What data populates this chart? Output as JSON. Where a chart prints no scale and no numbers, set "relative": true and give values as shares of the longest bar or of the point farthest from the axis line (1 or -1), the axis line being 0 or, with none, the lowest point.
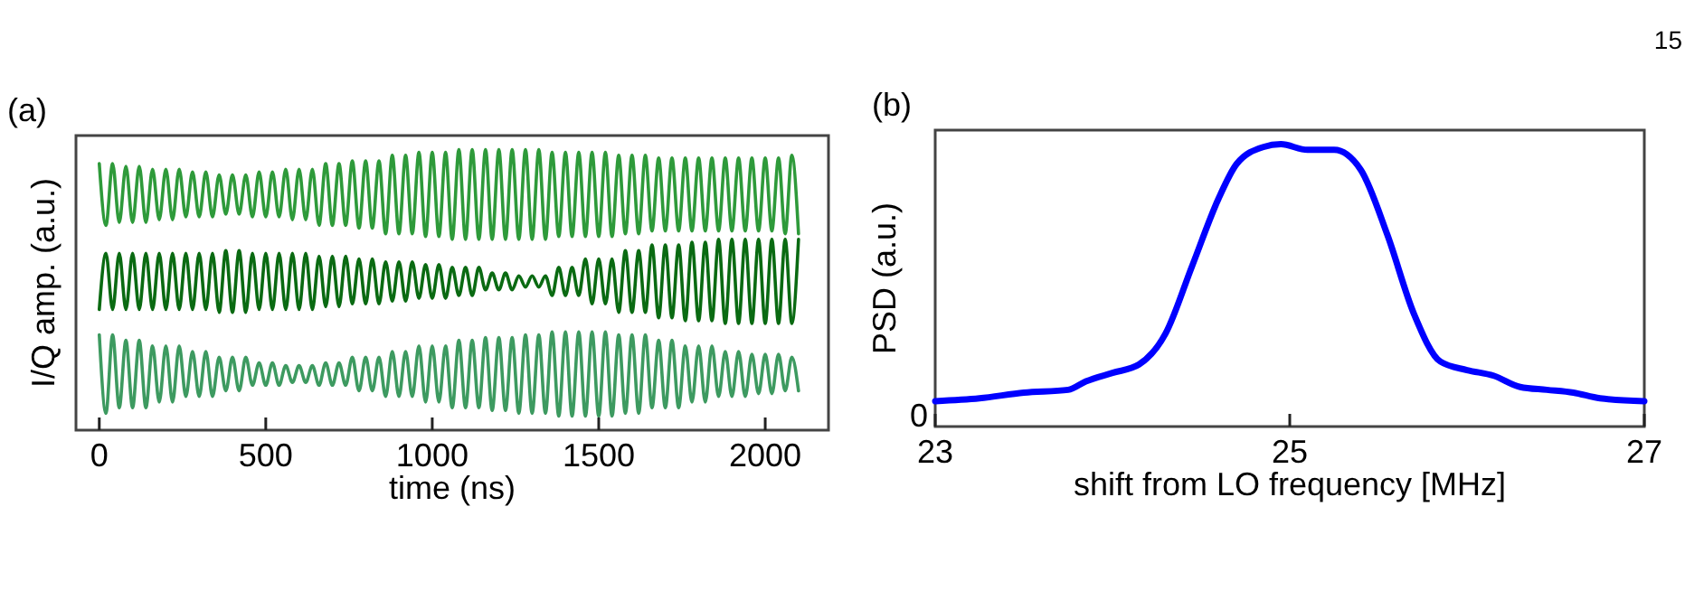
{
  "chart_data": [
    {
      "type": "line",
      "xlabel": "time (ns)",
      "ylabel": "I/Q amp. (a.u.)",
      "relative": true,
      "tick_labels": "x",
      "xlim": [
        -70,
        2190
      ],
      "xticks": [
        0,
        500,
        1000,
        1500,
        2000
      ],
      "annotations": [
        "(a)"
      ],
      "x": [
        0,
        20,
        40,
        60,
        80,
        100,
        120,
        140,
        160,
        180,
        200,
        220,
        240,
        260,
        280,
        300,
        320,
        340,
        360,
        380,
        400,
        420,
        440,
        460,
        480,
        500,
        520,
        540,
        560,
        580,
        600,
        620,
        640,
        660,
        680,
        700,
        720,
        740,
        760,
        780,
        800,
        820,
        840,
        860,
        880,
        900,
        920,
        940,
        960,
        980,
        1000,
        1020,
        1040,
        1060,
        1080,
        1100,
        1120,
        1140,
        1160,
        1180,
        1200,
        1220,
        1240,
        1260,
        1280,
        1300,
        1320,
        1340,
        1360,
        1380,
        1400,
        1420,
        1440,
        1460,
        1480,
        1500,
        1520,
        1540,
        1560,
        1580,
        1600,
        1620,
        1640,
        1660,
        1680,
        1700,
        1720,
        1740,
        1760,
        1780,
        1800,
        1820,
        1840,
        1860,
        1880,
        1900,
        1920,
        1940,
        1960,
        1980,
        2000,
        2020,
        2040,
        2060,
        2080,
        2100
      ],
      "series": [
        {
          "color": "#2e9a3a",
          "values": [
            0.95,
            0.73,
            0.95,
            0.74,
            0.94,
            0.74,
            0.94,
            0.74,
            0.93,
            0.75,
            0.93,
            0.75,
            0.93,
            0.76,
            0.92,
            0.76,
            0.92,
            0.76,
            0.91,
            0.77,
            0.91,
            0.77,
            0.91,
            0.76,
            0.92,
            0.76,
            0.92,
            0.76,
            0.93,
            0.75,
            0.93,
            0.75,
            0.93,
            0.73,
            0.95,
            0.73,
            0.95,
            0.73,
            0.96,
            0.72,
            0.96,
            0.72,
            0.96,
            0.7,
            0.98,
            0.7,
            0.98,
            0.7,
            0.99,
            0.69,
            0.99,
            0.69,
            0.99,
            0.68,
            1.0,
            0.68,
            1.0,
            0.68,
            1.0,
            0.68,
            1.0,
            0.68,
            1.0,
            0.68,
            1.0,
            0.68,
            1.0,
            0.68,
            0.99,
            0.69,
            0.99,
            0.69,
            0.99,
            0.69,
            0.99,
            0.69,
            0.99,
            0.69,
            0.98,
            0.7,
            0.98,
            0.7,
            0.98,
            0.71,
            0.97,
            0.71,
            0.97,
            0.71,
            0.97,
            0.71,
            0.97,
            0.71,
            0.97,
            0.71,
            0.97,
            0.71,
            0.97,
            0.71,
            0.97,
            0.71,
            0.97,
            0.71,
            0.97,
            0.7,
            0.98,
            0.7
          ]
        },
        {
          "color": "#0a6a12",
          "values": [
            0.43,
            0.63,
            0.43,
            0.63,
            0.43,
            0.63,
            0.43,
            0.63,
            0.43,
            0.63,
            0.43,
            0.63,
            0.43,
            0.63,
            0.43,
            0.63,
            0.43,
            0.63,
            0.42,
            0.64,
            0.42,
            0.64,
            0.42,
            0.63,
            0.43,
            0.63,
            0.43,
            0.63,
            0.43,
            0.63,
            0.43,
            0.63,
            0.43,
            0.62,
            0.44,
            0.62,
            0.44,
            0.62,
            0.45,
            0.61,
            0.45,
            0.61,
            0.45,
            0.6,
            0.46,
            0.6,
            0.46,
            0.6,
            0.47,
            0.59,
            0.47,
            0.59,
            0.47,
            0.58,
            0.48,
            0.58,
            0.48,
            0.58,
            0.5,
            0.56,
            0.5,
            0.56,
            0.5,
            0.55,
            0.51,
            0.55,
            0.51,
            0.55,
            0.48,
            0.58,
            0.48,
            0.58,
            0.48,
            0.61,
            0.45,
            0.61,
            0.45,
            0.61,
            0.42,
            0.64,
            0.42,
            0.64,
            0.42,
            0.66,
            0.4,
            0.66,
            0.4,
            0.66,
            0.39,
            0.67,
            0.39,
            0.67,
            0.39,
            0.68,
            0.38,
            0.68,
            0.38,
            0.68,
            0.38,
            0.68,
            0.38,
            0.68,
            0.38,
            0.68,
            0.38,
            0.68
          ]
        },
        {
          "color": "#3d9a60",
          "values": [
            0.34,
            0.06,
            0.34,
            0.08,
            0.32,
            0.08,
            0.32,
            0.08,
            0.3,
            0.1,
            0.3,
            0.1,
            0.3,
            0.12,
            0.28,
            0.12,
            0.28,
            0.12,
            0.26,
            0.14,
            0.26,
            0.14,
            0.26,
            0.16,
            0.24,
            0.16,
            0.24,
            0.16,
            0.23,
            0.17,
            0.23,
            0.17,
            0.23,
            0.16,
            0.24,
            0.16,
            0.24,
            0.16,
            0.26,
            0.14,
            0.26,
            0.14,
            0.26,
            0.12,
            0.28,
            0.12,
            0.28,
            0.12,
            0.3,
            0.1,
            0.3,
            0.1,
            0.3,
            0.08,
            0.32,
            0.08,
            0.32,
            0.08,
            0.33,
            0.07,
            0.33,
            0.07,
            0.33,
            0.06,
            0.34,
            0.06,
            0.34,
            0.06,
            0.35,
            0.05,
            0.35,
            0.05,
            0.35,
            0.05,
            0.35,
            0.05,
            0.35,
            0.05,
            0.34,
            0.06,
            0.34,
            0.06,
            0.34,
            0.08,
            0.32,
            0.08,
            0.32,
            0.08,
            0.3,
            0.1,
            0.3,
            0.1,
            0.3,
            0.12,
            0.28,
            0.12,
            0.28,
            0.12,
            0.27,
            0.13,
            0.27,
            0.13,
            0.27,
            0.14,
            0.26,
            0.14
          ]
        }
      ]
    },
    {
      "type": "line",
      "xlabel": "shift from LO frequency [MHz]",
      "ylabel": "PSD (a.u.)",
      "relative": true,
      "xlim": [
        23,
        27
      ],
      "xticks": [
        23,
        25,
        27
      ],
      "annotations": [
        "(b)",
        "15",
        "0"
      ],
      "x": [
        23.0,
        23.25,
        23.5,
        23.75,
        23.85,
        24.0,
        24.15,
        24.3,
        24.45,
        24.6,
        24.7,
        24.85,
        24.95,
        25.1,
        25.25,
        25.4,
        25.55,
        25.7,
        25.85,
        26.0,
        26.15,
        26.3,
        26.45,
        26.6,
        26.75,
        27.0
      ],
      "series": [
        {
          "color": "#0000ff",
          "values": [
            0.09,
            0.1,
            0.12,
            0.13,
            0.16,
            0.19,
            0.22,
            0.33,
            0.57,
            0.81,
            0.93,
            0.99,
            1.0,
            0.98,
            0.98,
            0.91,
            0.68,
            0.4,
            0.23,
            0.2,
            0.18,
            0.14,
            0.13,
            0.12,
            0.1,
            0.09
          ]
        }
      ]
    }
  ]
}
